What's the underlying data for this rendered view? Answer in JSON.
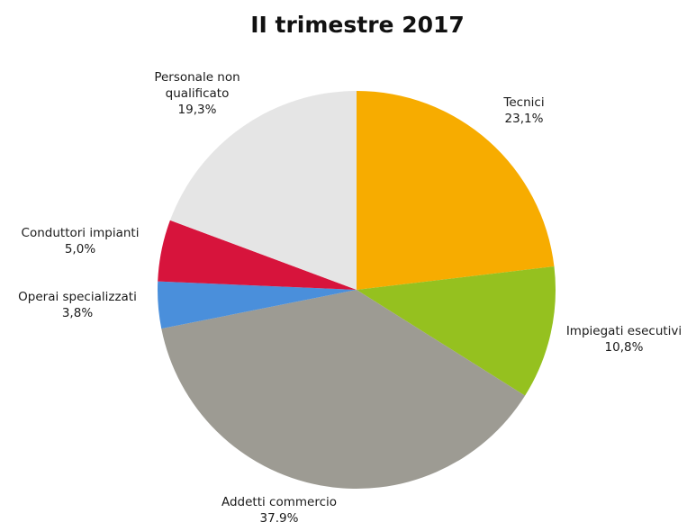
{
  "chart_data": {
    "type": "pie",
    "title": "II trimestre 2017",
    "start": "12-o'clock",
    "direction": "clockwise",
    "legend": "none",
    "slices": [
      {
        "label": "Tecnici",
        "label_lines": [
          "Tecnici"
        ],
        "value_text": "23,1%",
        "value": 23.1,
        "color": "#f7ac00"
      },
      {
        "label": "Impiegati esecutivi",
        "label_lines": [
          "Impiegati esecutivi"
        ],
        "value_text": "10,8%",
        "value": 10.8,
        "color": "#95c11f"
      },
      {
        "label": "Addetti commercio",
        "label_lines": [
          "Addetti commercio"
        ],
        "value_text": "37.9%",
        "value": 37.9,
        "color": "#9d9b93"
      },
      {
        "label": "Operai specializzati",
        "label_lines": [
          "Operai specializzati"
        ],
        "value_text": "3,8%",
        "value": 3.8,
        "color": "#4a8fdb"
      },
      {
        "label": "Conduttori impianti",
        "label_lines": [
          "Conduttori impianti"
        ],
        "value_text": "5,0%",
        "value": 5.0,
        "color": "#d7143c"
      },
      {
        "label": "Personale non qualificato",
        "label_lines": [
          "Personale non",
          "qualificato"
        ],
        "value_text": "19,3%",
        "value": 19.3,
        "color": "#e5e5e5"
      }
    ]
  }
}
